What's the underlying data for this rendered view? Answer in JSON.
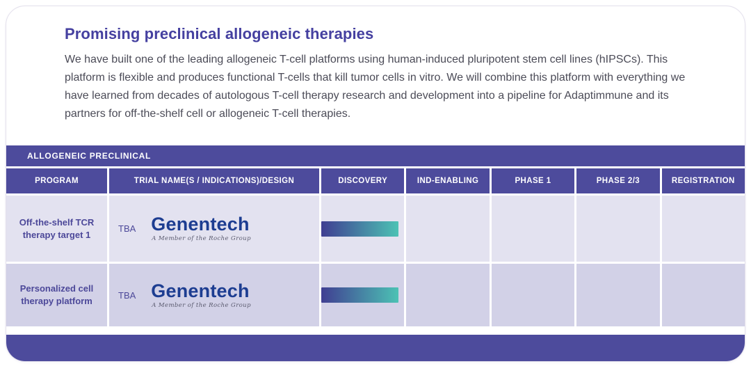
{
  "page": {
    "title": "Promising preclinical allogeneic therapies",
    "intro": "We have built one of the leading allogeneic T-cell platforms using human-induced pluripotent stem cell lines (hIPSCs). This platform is flexible and produces functional T-cells that kill tumor cells in vitro. We will combine this platform with everything we have learned from decades of autologous T-cell therapy research and development into a pipeline for Adaptimmune and its partners for off-the-shelf cell or allogeneic T-cell therapies."
  },
  "table": {
    "band_label": "ALLOGENEIC PRECLINICAL",
    "columns": [
      "PROGRAM",
      "TRIAL NAME(S / INDICATIONS)/DESIGN",
      "DISCOVERY",
      "IND-ENABLING",
      "PHASE 1",
      "PHASE 2/3",
      "REGISTRATION"
    ],
    "rows": [
      {
        "program": "Off-the-shelf TCR therapy target 1",
        "trial_name": "TBA",
        "partner_logo": "Genentech",
        "partner_tagline": "A Member of the Roche Group",
        "progress_phase": "DISCOVERY"
      },
      {
        "program": "Personalized cell therapy platform",
        "trial_name": "TBA",
        "partner_logo": "Genentech",
        "partner_tagline": "A Member of the Roche Group",
        "progress_phase": "DISCOVERY"
      }
    ]
  },
  "colors": {
    "indigo": "#4d4b9c",
    "indigo_dark": "#403e92",
    "teal": "#4cc2b4",
    "row_light": "#e3e2f0",
    "row_dark": "#d2d1e7",
    "title_color": "#4540a0",
    "program_text": "#4c4899",
    "logo_blue": "#1d3d91"
  }
}
